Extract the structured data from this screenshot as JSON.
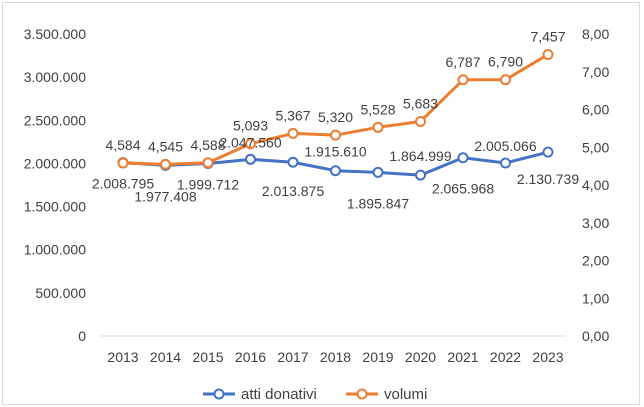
{
  "chart_data": {
    "type": "line",
    "title": "",
    "categories": [
      "2013",
      "2014",
      "2015",
      "2016",
      "2017",
      "2018",
      "2019",
      "2020",
      "2021",
      "2022",
      "2023"
    ],
    "y_left": {
      "min": 0,
      "max": 3500000,
      "step": 500000,
      "tick_labels": [
        "0",
        "500.000",
        "1.000.000",
        "1.500.000",
        "2.000.000",
        "2.500.000",
        "3.000.000",
        "3.500.000"
      ]
    },
    "y_right": {
      "min": 0,
      "max": 8,
      "step": 1,
      "tick_labels": [
        "0,00",
        "1,00",
        "2,00",
        "3,00",
        "4,00",
        "5,00",
        "6,00",
        "7,00",
        "8,00"
      ]
    },
    "grid": false,
    "legend_position": "bottom",
    "series": [
      {
        "name": "atti donativi",
        "axis": "left",
        "color": "#4472C4",
        "values": [
          2008795,
          1977408,
          1999712,
          2047560,
          2013875,
          1915610,
          1895847,
          1864999,
          2065968,
          2005066,
          2130739
        ],
        "labels": [
          "2.008.795",
          "1.977.408",
          "1.999.712",
          "2.047.560",
          "2.013.875",
          "1.915.610",
          "1.895.847",
          "1.864.999",
          "2.065.968",
          "2.005.066",
          "2.130.739"
        ]
      },
      {
        "name": "volumi",
        "axis": "right",
        "color": "#ED7D31",
        "values": [
          4.584,
          4.545,
          4.588,
          5.093,
          5.367,
          5.32,
          5.528,
          5.683,
          6.787,
          6.79,
          7.457
        ],
        "labels": [
          "4,584",
          "4,545",
          "4,588",
          "5,093",
          "5,367",
          "5,320",
          "5,528",
          "5,683",
          "6,787",
          "6,790",
          "7,457"
        ]
      }
    ]
  }
}
